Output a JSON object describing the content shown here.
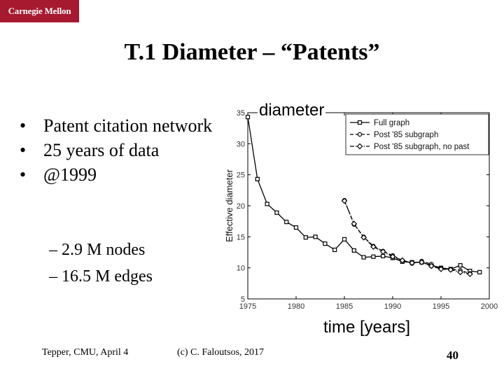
{
  "logo": {
    "text": "Carnegie Mellon"
  },
  "title": "T.1 Diameter – “Patents”",
  "bullets": [
    "Patent citation network",
    "25 years of data",
    "@1999"
  ],
  "bullet_symbol": "•",
  "sub_bullets": [
    "– 2.9 M nodes",
    "– 16.5 M edges"
  ],
  "annotations": {
    "diameter": "diameter",
    "time": "time [years]"
  },
  "footer": {
    "left": "Tepper, CMU, April 4",
    "center": "(c) C. Faloutsos, 2017",
    "page": "40"
  },
  "chart_data": {
    "type": "line",
    "xlabel": "",
    "ylabel": "Effective diameter",
    "xlim": [
      1975,
      2000
    ],
    "ylim": [
      5,
      35
    ],
    "xticks": [
      1975,
      1980,
      1985,
      1990,
      1995,
      2000
    ],
    "yticks": [
      5,
      10,
      15,
      20,
      25,
      30,
      35
    ],
    "legend_position": "top-right",
    "series": [
      {
        "name": "Full graph",
        "style": "solid",
        "marker": "square",
        "x": [
          1975,
          1976,
          1977,
          1978,
          1979,
          1980,
          1981,
          1982,
          1983,
          1984,
          1985,
          1986,
          1987,
          1988,
          1989,
          1990,
          1991,
          1992,
          1993,
          1994,
          1995,
          1996,
          1997,
          1998,
          1999
        ],
        "y": [
          34.3,
          24.3,
          20.3,
          18.9,
          17.4,
          16.5,
          14.9,
          15.0,
          13.9,
          12.9,
          14.6,
          12.8,
          11.7,
          11.8,
          11.9,
          11.6,
          11.0,
          10.9,
          10.9,
          10.4,
          10.0,
          9.8,
          10.4,
          9.5,
          9.3
        ]
      },
      {
        "name": "Post '85 subgraph",
        "style": "dashed",
        "marker": "circle",
        "x": [
          1985,
          1986,
          1987,
          1988,
          1989,
          1990,
          1991,
          1992,
          1993,
          1994,
          1995,
          1996,
          1997,
          1998
        ],
        "y": [
          20.9,
          17.0,
          15.0,
          13.5,
          12.7,
          12.0,
          11.2,
          10.7,
          11.1,
          10.6,
          9.9,
          9.8,
          9.6,
          9.1
        ]
      },
      {
        "name": "Post '85 subgraph, no past",
        "style": "dashdot",
        "marker": "diamond",
        "x": [
          1985,
          1986,
          1987,
          1988,
          1989,
          1990,
          1991,
          1992,
          1993,
          1994,
          1995,
          1996,
          1997,
          1998
        ],
        "y": [
          20.8,
          17.1,
          14.9,
          13.4,
          12.6,
          11.8,
          11.2,
          10.8,
          10.9,
          10.3,
          9.8,
          9.7,
          9.3,
          9.0
        ]
      }
    ]
  }
}
